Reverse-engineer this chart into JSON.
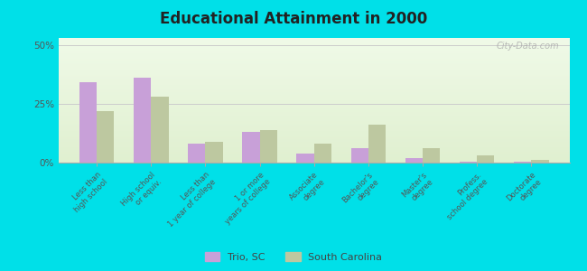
{
  "title": "Educational Attainment in 2000",
  "categories": [
    "Less than\nhigh school",
    "High school\nor equiv.",
    "Less than\n1 year of college",
    "1 or more\nyears of college",
    "Associate\ndegree",
    "Bachelor's\ndegree",
    "Master's\ndegree",
    "Profess.\nschool degree",
    "Doctorate\ndegree"
  ],
  "trio_sc": [
    34,
    36,
    8,
    13,
    4,
    6,
    2,
    0.5,
    0.5
  ],
  "south_carolina": [
    22,
    28,
    9,
    14,
    8,
    16,
    6,
    3,
    1
  ],
  "trio_color": "#c8a0d8",
  "sc_color": "#bdc8a0",
  "bg_top": "#f0fae8",
  "bg_bottom": "#e0f0d0",
  "outer_background": "#00e0e8",
  "yticks": [
    0,
    25,
    50
  ],
  "ylim": [
    0,
    53
  ],
  "watermark": "City-Data.com"
}
